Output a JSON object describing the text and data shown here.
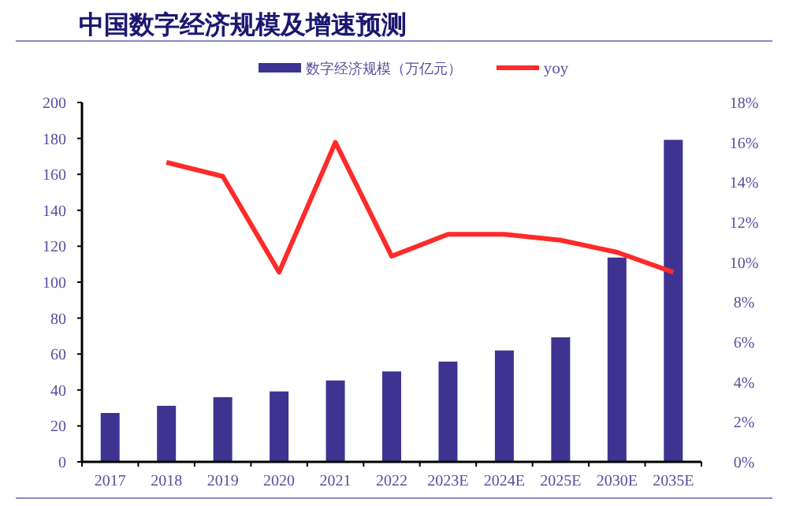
{
  "chart_data": {
    "type": "bar",
    "title": "中国数字经济规模及增速预测",
    "categories": [
      "2017",
      "2018",
      "2019",
      "2020",
      "2021",
      "2022",
      "2023E",
      "2024E",
      "2025E",
      "2030E",
      "2035E"
    ],
    "series": [
      {
        "name": "数字经济规模（万亿元）",
        "color": "#3f3391",
        "values": [
          27.2,
          31.2,
          36.0,
          39.2,
          45.3,
          50.3,
          55.8,
          62.0,
          69.3,
          113.7,
          179.2
        ]
      },
      {
        "name": "yoy",
        "type": "line",
        "axis": "y2",
        "color": "#ff2a2a",
        "values": [
          null,
          15.0,
          14.3,
          9.5,
          16.0,
          10.3,
          11.4,
          11.4,
          11.1,
          10.5,
          9.5
        ]
      }
    ],
    "ylim": [
      0,
      200
    ],
    "yticks": [
      0,
      20,
      40,
      60,
      80,
      100,
      120,
      140,
      160,
      180,
      200
    ],
    "y2lim": [
      0,
      18
    ],
    "y2ticks": [
      {
        "value": 0,
        "label": "0%"
      },
      {
        "value": 2,
        "label": "2%"
      },
      {
        "value": 4,
        "label": "4%"
      },
      {
        "value": 6,
        "label": "6%"
      },
      {
        "value": 8,
        "label": "8%"
      },
      {
        "value": 10,
        "label": "10%"
      },
      {
        "value": 12,
        "label": "12%"
      },
      {
        "value": 14,
        "label": "14%"
      },
      {
        "value": 16,
        "label": "16%"
      },
      {
        "value": 18,
        "label": "18%"
      }
    ],
    "legend": "top",
    "grid": false
  }
}
